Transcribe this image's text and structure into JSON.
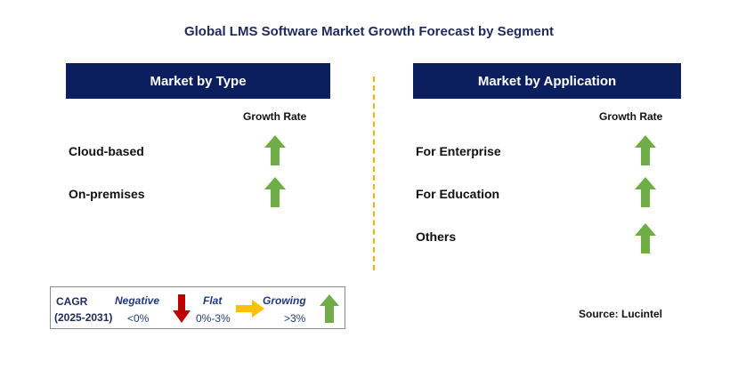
{
  "title": "Global LMS Software Market Growth Forecast by Segment",
  "left_panel": {
    "header": "Market by Type",
    "growth_rate_label": "Growth Rate",
    "items": [
      {
        "label": "Cloud-based",
        "trend": "growing"
      },
      {
        "label": "On-premises",
        "trend": "growing"
      }
    ]
  },
  "right_panel": {
    "header": "Market by Application",
    "growth_rate_label": "Growth Rate",
    "items": [
      {
        "label": "For Enterprise",
        "trend": "growing"
      },
      {
        "label": "For Education",
        "trend": "growing"
      },
      {
        "label": "Others",
        "trend": "growing"
      }
    ]
  },
  "legend": {
    "cagr_label": "CAGR",
    "period": "(2025-2031)",
    "negative": {
      "label": "Negative",
      "range": "<0%",
      "color": "#c00000",
      "icon": "down-arrow-icon"
    },
    "flat": {
      "label": "Flat",
      "range": "0%-3%",
      "color": "#ffc000",
      "icon": "right-arrow-icon"
    },
    "growing": {
      "label": "Growing",
      "range": ">3%",
      "color": "#70ad47",
      "icon": "up-arrow-icon"
    }
  },
  "source": "Source: Lucintel",
  "colors": {
    "header_bg": "#0b1f5e",
    "divider": "#f0b400",
    "growth_arrow": "#70ad47"
  }
}
